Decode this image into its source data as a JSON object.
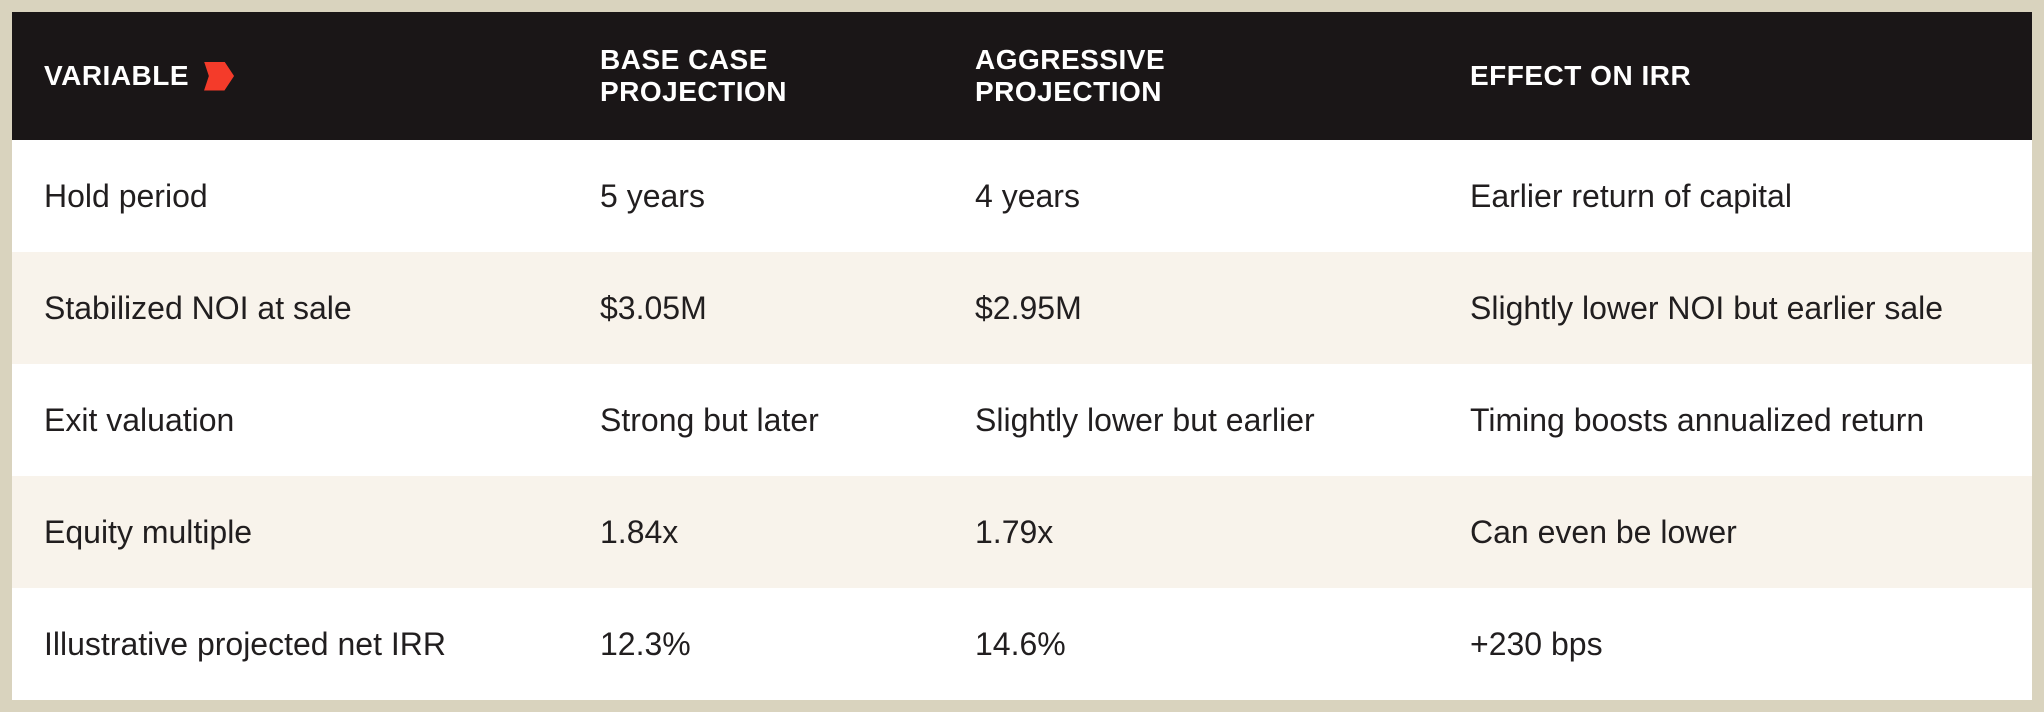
{
  "theme": {
    "frame_bg": "#d9d3be",
    "header_bg": "#1a1617",
    "header_text": "#ffffff",
    "row_bg_white": "#ffffff",
    "row_bg_cream": "#f8f3eb",
    "body_text": "#211e1f",
    "accent_red": "#f43b2a"
  },
  "table": {
    "columns": [
      {
        "label": "VARIABLE",
        "icon": "red-chevron-icon"
      },
      {
        "label": "BASE CASE PROJECTION"
      },
      {
        "label": "AGGRESSIVE PROJECTION"
      },
      {
        "label": "EFFECT ON IRR"
      }
    ],
    "rows": [
      {
        "variable": "Hold period",
        "base_case": "5 years",
        "aggressive": "4 years",
        "effect": "Earlier return of capital"
      },
      {
        "variable": "Stabilized NOI at sale",
        "base_case": "$3.05M",
        "aggressive": "$2.95M",
        "effect": "Slightly lower NOI but earlier sale"
      },
      {
        "variable": "Exit valuation",
        "base_case": "Strong but later",
        "aggressive": "Slightly lower but earlier",
        "effect": "Timing boosts annualized return"
      },
      {
        "variable": "Equity multiple",
        "base_case": "1.84x",
        "aggressive": "1.79x",
        "effect": "Can even be lower"
      },
      {
        "variable": "Illustrative projected net IRR",
        "base_case": "12.3%",
        "aggressive": "14.6%",
        "effect": "+230 bps"
      }
    ]
  }
}
